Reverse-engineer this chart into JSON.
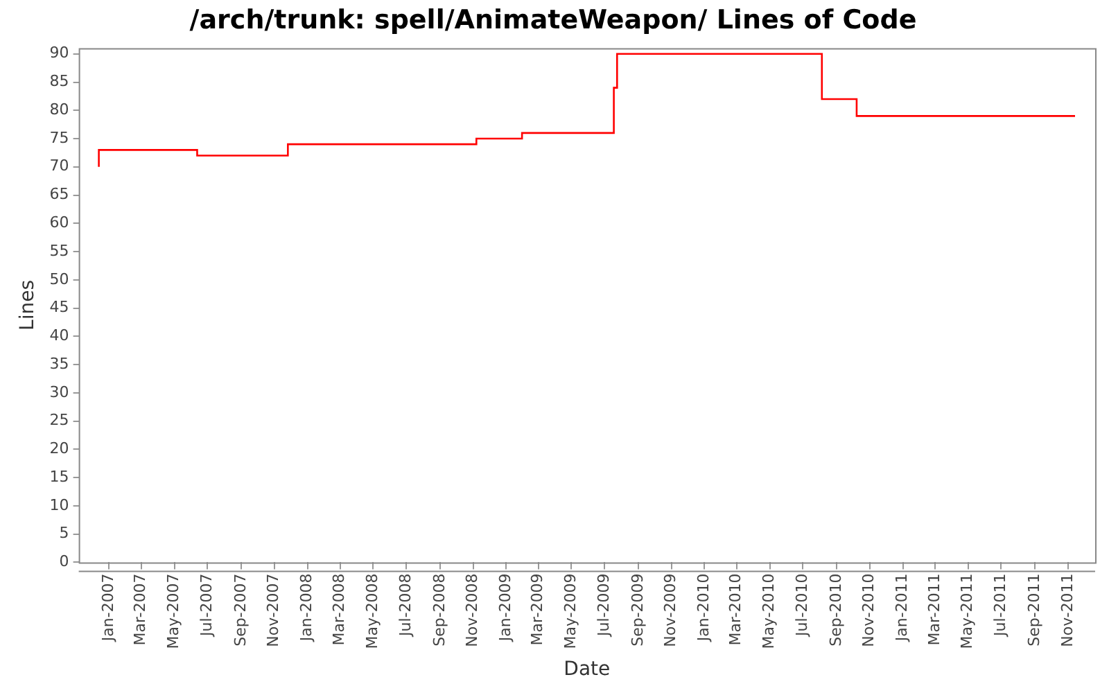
{
  "chart_data": {
    "type": "step",
    "title": "/arch/trunk: spell/AnimateWeapon/ Lines of Code",
    "xlabel": "Date",
    "ylabel": "Lines",
    "x": [
      "2006-12-13",
      "2006-12-13",
      "2007-06-12",
      "2007-11-26",
      "2008-11-07",
      "2009-01-30",
      "2009-07-18",
      "2009-07-24",
      "2010-08-05",
      "2010-10-08",
      "2011-11-14"
    ],
    "series": [
      {
        "color": "#ff0000",
        "values": [
          70,
          73,
          72,
          74,
          75,
          76,
          84,
          90,
          82,
          79,
          79
        ]
      }
    ],
    "xlim": [
      "2006-11-06",
      "2011-12-21"
    ],
    "xticks": [
      {
        "value": "2007-01",
        "label": "Jan-2007"
      },
      {
        "value": "2007-03",
        "label": "Mar-2007"
      },
      {
        "value": "2007-05",
        "label": "May-2007"
      },
      {
        "value": "2007-07",
        "label": "Jul-2007"
      },
      {
        "value": "2007-09",
        "label": "Sep-2007"
      },
      {
        "value": "2007-11",
        "label": "Nov-2007"
      },
      {
        "value": "2008-01",
        "label": "Jan-2008"
      },
      {
        "value": "2008-03",
        "label": "Mar-2008"
      },
      {
        "value": "2008-05",
        "label": "May-2008"
      },
      {
        "value": "2008-07",
        "label": "Jul-2008"
      },
      {
        "value": "2008-09",
        "label": "Sep-2008"
      },
      {
        "value": "2008-11",
        "label": "Nov-2008"
      },
      {
        "value": "2009-01",
        "label": "Jan-2009"
      },
      {
        "value": "2009-03",
        "label": "Mar-2009"
      },
      {
        "value": "2009-05",
        "label": "May-2009"
      },
      {
        "value": "2009-07",
        "label": "Jul-2009"
      },
      {
        "value": "2009-09",
        "label": "Sep-2009"
      },
      {
        "value": "2009-11",
        "label": "Nov-2009"
      },
      {
        "value": "2010-01",
        "label": "Jan-2010"
      },
      {
        "value": "2010-03",
        "label": "Mar-2010"
      },
      {
        "value": "2010-05",
        "label": "May-2010"
      },
      {
        "value": "2010-07",
        "label": "Jul-2010"
      },
      {
        "value": "2010-09",
        "label": "Sep-2010"
      },
      {
        "value": "2010-11",
        "label": "Nov-2010"
      },
      {
        "value": "2011-01",
        "label": "Jan-2011"
      },
      {
        "value": "2011-03",
        "label": "Mar-2011"
      },
      {
        "value": "2011-05",
        "label": "May-2011"
      },
      {
        "value": "2011-07",
        "label": "Jul-2011"
      },
      {
        "value": "2011-09",
        "label": "Sep-2011"
      },
      {
        "value": "2011-11",
        "label": "Nov-2011"
      }
    ],
    "ylim": [
      0,
      91
    ],
    "yticks": [
      0,
      5,
      10,
      15,
      20,
      25,
      30,
      35,
      40,
      45,
      50,
      55,
      60,
      65,
      70,
      75,
      80,
      85,
      90
    ],
    "grid": false,
    "legend": false
  }
}
